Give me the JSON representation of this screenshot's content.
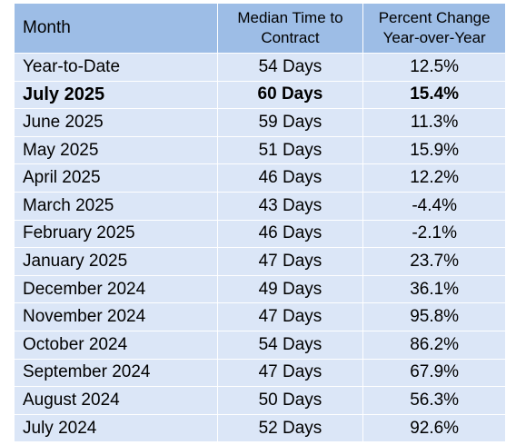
{
  "table": {
    "headers": {
      "month": "Month",
      "median_line1": "Median Time to",
      "median_line2": "Contract",
      "pct_line1": "Percent Change",
      "pct_line2": "Year-over-Year"
    },
    "rows": [
      {
        "month": "Year-to-Date",
        "median": "54 Days",
        "pct": "12.5%"
      },
      {
        "month": "July 2025",
        "median": "60 Days",
        "pct": "15.4%"
      },
      {
        "month": "June 2025",
        "median": "59 Days",
        "pct": "11.3%"
      },
      {
        "month": "May 2025",
        "median": "51 Days",
        "pct": "15.9%"
      },
      {
        "month": "April 2025",
        "median": "46 Days",
        "pct": "12.2%"
      },
      {
        "month": "March 2025",
        "median": "43 Days",
        "pct": "-4.4%"
      },
      {
        "month": "February 2025",
        "median": "46 Days",
        "pct": "-2.1%"
      },
      {
        "month": "January 2025",
        "median": "47 Days",
        "pct": "23.7%"
      },
      {
        "month": "December 2024",
        "median": "49 Days",
        "pct": "36.1%"
      },
      {
        "month": "November 2024",
        "median": "47 Days",
        "pct": "95.8%"
      },
      {
        "month": "October 2024",
        "median": "54 Days",
        "pct": "86.2%"
      },
      {
        "month": "September 2024",
        "median": "47 Days",
        "pct": "67.9%"
      },
      {
        "month": "August 2024",
        "median": "50 Days",
        "pct": "56.3%"
      },
      {
        "month": "July 2024",
        "median": "52 Days",
        "pct": "92.6%"
      }
    ],
    "colors": {
      "header_bg": "#9dbde6",
      "row_bg": "#dbe6f7"
    }
  }
}
